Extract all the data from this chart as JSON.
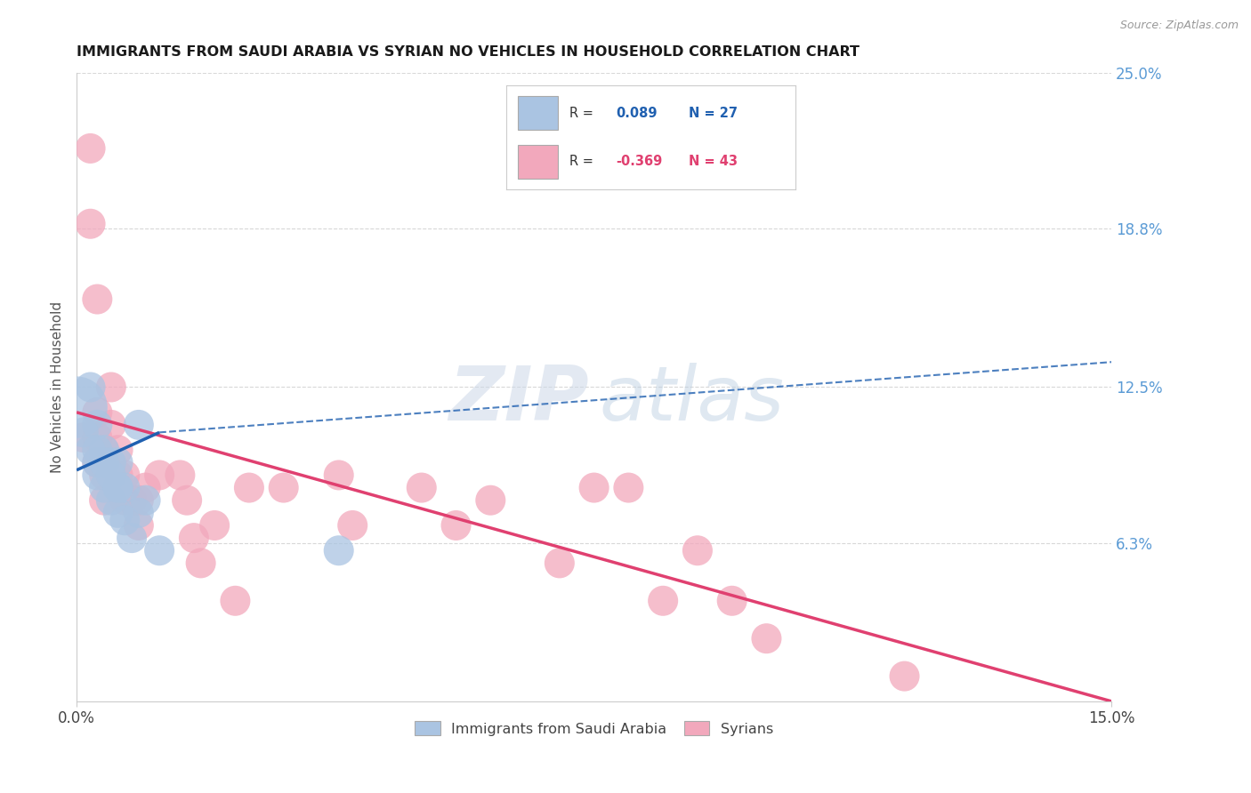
{
  "title": "IMMIGRANTS FROM SAUDI ARABIA VS SYRIAN NO VEHICLES IN HOUSEHOLD CORRELATION CHART",
  "source": "Source: ZipAtlas.com",
  "ylabel_label": "No Vehicles in Household",
  "right_ytick_labels": [
    "25.0%",
    "18.8%",
    "12.5%",
    "6.3%"
  ],
  "right_ytick_values": [
    0.25,
    0.188,
    0.125,
    0.063
  ],
  "xmin": 0.0,
  "xmax": 0.15,
  "ymin": 0.0,
  "ymax": 0.25,
  "color_saudi": "#aac4e2",
  "color_syrian": "#f2a8bc",
  "color_saudi_line": "#2060b0",
  "color_syrian_line": "#e04070",
  "color_right_axis": "#5b9bd5",
  "saudi_line_x0": 0.0,
  "saudi_line_y0": 0.092,
  "saudi_line_x1": 0.012,
  "saudi_line_y1": 0.107,
  "saudi_line_dash_x0": 0.012,
  "saudi_line_dash_y0": 0.107,
  "saudi_line_dash_x1": 0.15,
  "saudi_line_dash_y1": 0.135,
  "syrian_line_x0": 0.0,
  "syrian_line_y0": 0.115,
  "syrian_line_x1": 0.15,
  "syrian_line_y1": 0.0,
  "saudi_x": [
    0.0,
    0.001,
    0.002,
    0.002,
    0.003,
    0.003,
    0.003,
    0.003,
    0.004,
    0.004,
    0.004,
    0.005,
    0.005,
    0.005,
    0.006,
    0.006,
    0.006,
    0.006,
    0.007,
    0.007,
    0.008,
    0.009,
    0.009,
    0.01,
    0.012,
    0.038
  ],
  "saudi_y": [
    0.117,
    0.107,
    0.125,
    0.1,
    0.11,
    0.1,
    0.095,
    0.09,
    0.1,
    0.095,
    0.085,
    0.095,
    0.09,
    0.08,
    0.095,
    0.085,
    0.085,
    0.075,
    0.085,
    0.072,
    0.065,
    0.11,
    0.075,
    0.08,
    0.06,
    0.06
  ],
  "saudi_sizes": [
    250,
    60,
    60,
    60,
    60,
    60,
    60,
    60,
    60,
    60,
    60,
    60,
    60,
    60,
    60,
    60,
    60,
    60,
    60,
    60,
    60,
    60,
    60,
    60,
    60,
    60
  ],
  "syrian_x": [
    0.001,
    0.002,
    0.002,
    0.003,
    0.003,
    0.003,
    0.003,
    0.004,
    0.004,
    0.004,
    0.005,
    0.005,
    0.005,
    0.006,
    0.006,
    0.007,
    0.007,
    0.008,
    0.009,
    0.009,
    0.01,
    0.012,
    0.015,
    0.016,
    0.017,
    0.018,
    0.02,
    0.023,
    0.025,
    0.03,
    0.038,
    0.04,
    0.05,
    0.055,
    0.06,
    0.07,
    0.075,
    0.08,
    0.085,
    0.09,
    0.095,
    0.1,
    0.12
  ],
  "syrian_y": [
    0.105,
    0.22,
    0.19,
    0.16,
    0.115,
    0.105,
    0.095,
    0.1,
    0.09,
    0.08,
    0.125,
    0.11,
    0.09,
    0.1,
    0.09,
    0.09,
    0.08,
    0.08,
    0.07,
    0.08,
    0.085,
    0.09,
    0.09,
    0.08,
    0.065,
    0.055,
    0.07,
    0.04,
    0.085,
    0.085,
    0.09,
    0.07,
    0.085,
    0.07,
    0.08,
    0.055,
    0.085,
    0.085,
    0.04,
    0.06,
    0.04,
    0.025,
    0.01
  ],
  "syrian_sizes": [
    60,
    60,
    60,
    60,
    60,
    60,
    60,
    60,
    60,
    60,
    60,
    60,
    60,
    60,
    60,
    60,
    60,
    60,
    60,
    60,
    60,
    60,
    60,
    60,
    60,
    60,
    60,
    60,
    60,
    60,
    60,
    60,
    60,
    60,
    60,
    60,
    60,
    60,
    60,
    60,
    60,
    60,
    60
  ],
  "watermark_zip": "ZIP",
  "watermark_atlas": "atlas",
  "background_color": "#ffffff",
  "grid_color": "#d8d8d8"
}
